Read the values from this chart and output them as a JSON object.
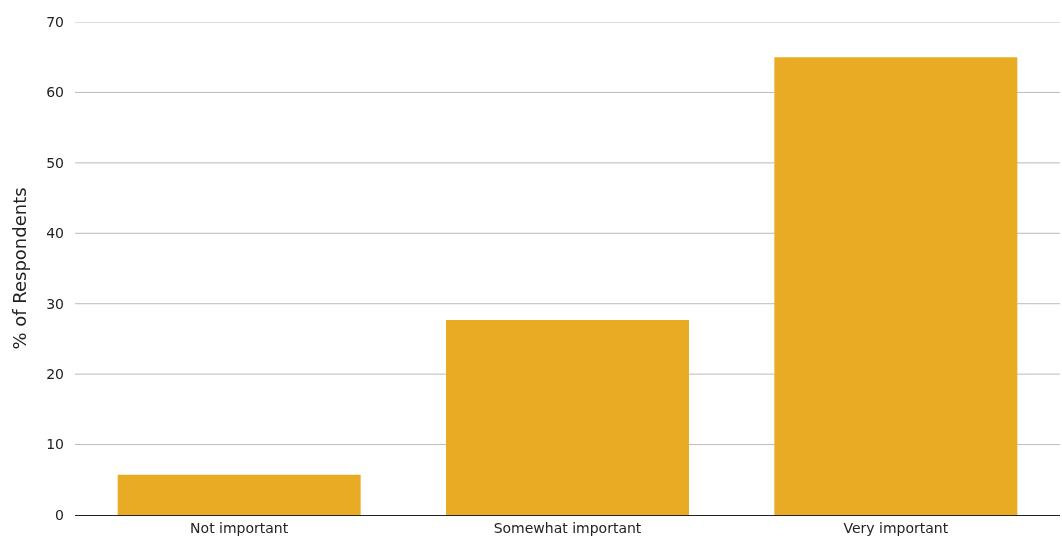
{
  "chart_data": {
    "type": "bar",
    "ylabel": "% of Respondents",
    "categories": [
      "Not important",
      "Somewhat important",
      "Very important"
    ],
    "values": [
      5.7,
      27.7,
      65
    ],
    "color": "#eaab24",
    "ylim": [
      0,
      70
    ],
    "yticks": [
      0,
      10,
      20,
      30,
      40,
      50,
      60,
      70
    ],
    "grid": "y"
  }
}
